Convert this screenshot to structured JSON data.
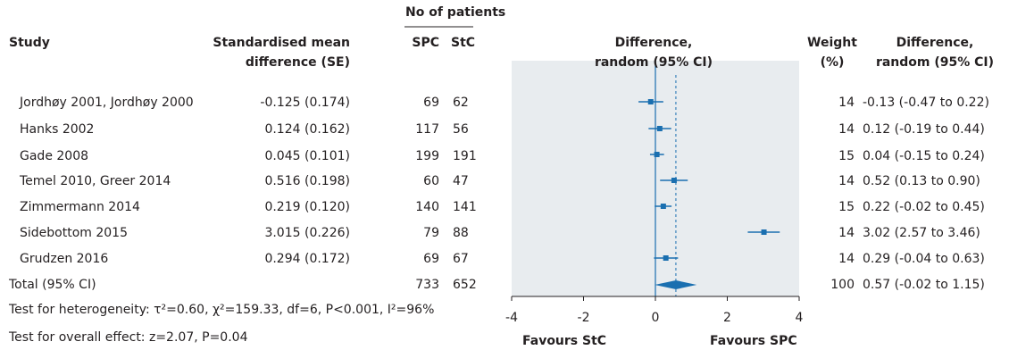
{
  "header": {
    "patients_group": "No of patients",
    "study": "Study",
    "smd_line1": "Standardised mean",
    "smd_line2": "difference (SE)",
    "spc": "SPC",
    "stc": "StC",
    "diff_line1": "Difference,",
    "diff_line2": "random (95% CI)",
    "weight_line1": "Weight",
    "weight_line2": "(%)",
    "diff2_line1": "Difference,",
    "diff2_line2": "random (95% CI)"
  },
  "rows": [
    {
      "study": "Jordhøy 2001, Jordhøy 2000",
      "smd": "-0.125 (0.174)",
      "spc": "69",
      "stc": "62",
      "weight": "14",
      "ci_text": "-0.13 (-0.47 to 0.22)"
    },
    {
      "study": "Hanks 2002",
      "smd": "0.124 (0.162)",
      "spc": "117",
      "stc": "56",
      "weight": "14",
      "ci_text": "0.12 (-0.19 to 0.44)"
    },
    {
      "study": "Gade 2008",
      "smd": "0.045 (0.101)",
      "spc": "199",
      "stc": "191",
      "weight": "15",
      "ci_text": "0.04 (-0.15 to 0.24)"
    },
    {
      "study": "Temel 2010, Greer 2014",
      "smd": "0.516 (0.198)",
      "spc": "60",
      "stc": "47",
      "weight": "14",
      "ci_text": "0.52 (0.13 to 0.90)"
    },
    {
      "study": "Zimmermann 2014",
      "smd": "0.219 (0.120)",
      "spc": "140",
      "stc": "141",
      "weight": "15",
      "ci_text": "0.22 (-0.02 to 0.45)"
    },
    {
      "study": "Sidebottom 2015",
      "smd": "3.015 (0.226)",
      "spc": "79",
      "stc": "88",
      "weight": "14",
      "ci_text": "3.02 (2.57 to 3.46)"
    },
    {
      "study": "Grudzen 2016",
      "smd": "0.294 (0.172)",
      "spc": "69",
      "stc": "67",
      "weight": "14",
      "ci_text": "0.29 (-0.04 to 0.63)"
    }
  ],
  "total": {
    "study": "Total (95% CI)",
    "spc": "733",
    "stc": "652",
    "weight": "100",
    "ci_text": "0.57 (-0.02 to 1.15)"
  },
  "footer": {
    "heterogeneity": "Test for heterogeneity: τ²=0.60, χ²=159.33, df=6, P<0.001, I²=96%",
    "overall": "Test for overall effect: z=2.07, P=0.04",
    "favours_left": "Favours StC",
    "favours_right": "Favours SPC"
  },
  "colors": {
    "text": "#231f20",
    "panel": "#e8ecef",
    "accent": "#1a6fb0"
  },
  "chart_data": {
    "type": "forest",
    "xlim": [
      -4,
      4
    ],
    "xticks": [
      "-4",
      "-2",
      "0",
      "2",
      "4"
    ],
    "studies": [
      {
        "name": "Jordhøy 2001, Jordhøy 2000",
        "estimate": -0.13,
        "lower": -0.47,
        "upper": 0.22
      },
      {
        "name": "Hanks 2002",
        "estimate": 0.12,
        "lower": -0.19,
        "upper": 0.44
      },
      {
        "name": "Gade 2008",
        "estimate": 0.04,
        "lower": -0.15,
        "upper": 0.24
      },
      {
        "name": "Temel 2010, Greer 2014",
        "estimate": 0.52,
        "lower": 0.13,
        "upper": 0.9
      },
      {
        "name": "Zimmermann 2014",
        "estimate": 0.22,
        "lower": -0.02,
        "upper": 0.45
      },
      {
        "name": "Sidebottom 2015",
        "estimate": 3.02,
        "lower": 2.57,
        "upper": 3.46
      },
      {
        "name": "Grudzen 2016",
        "estimate": 0.29,
        "lower": -0.04,
        "upper": 0.63
      }
    ],
    "pooled": {
      "estimate": 0.57,
      "lower": -0.02,
      "upper": 1.15
    },
    "null_line": 0
  }
}
